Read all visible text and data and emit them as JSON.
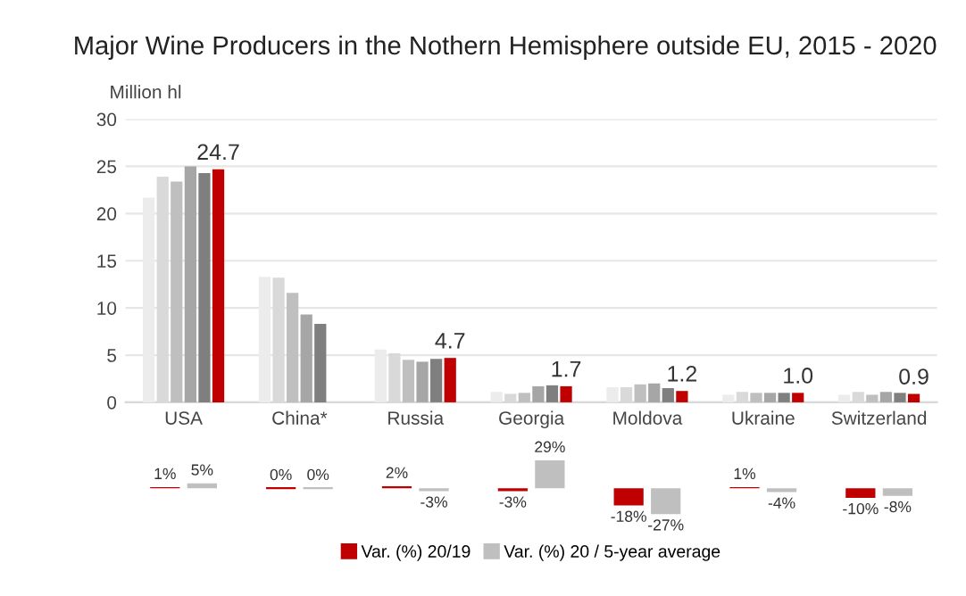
{
  "chart_data": [
    {
      "type": "bar",
      "title": "Major Wine Producers in the Nothern Hemisphere outside EU, 2015 - 2020",
      "ylabel": "Million hl",
      "categories": [
        "USA",
        "China*",
        "Russia",
        "Georgia",
        "Moldova",
        "Ukraine",
        "Switzerland"
      ],
      "series": [
        {
          "color": "#ececec",
          "values": [
            21.7,
            13.3,
            5.6,
            1.1,
            1.6,
            0.8,
            0.8
          ]
        },
        {
          "color": "#d9d9d9",
          "values": [
            23.9,
            13.2,
            5.2,
            0.9,
            1.6,
            1.1,
            1.1
          ]
        },
        {
          "color": "#bfbfbf",
          "values": [
            23.4,
            11.6,
            4.5,
            1.0,
            1.9,
            1.0,
            0.8
          ]
        },
        {
          "color": "#a6a6a6",
          "values": [
            25.0,
            9.3,
            4.3,
            1.7,
            2.0,
            1.0,
            1.1
          ]
        },
        {
          "color": "#7f7f7f",
          "values": [
            24.3,
            8.3,
            4.6,
            1.8,
            1.5,
            1.0,
            1.0
          ]
        },
        {
          "color": "#c00000",
          "values": [
            24.7,
            null,
            4.7,
            1.7,
            1.2,
            1.0,
            0.9
          ],
          "value_labels": [
            "24.7",
            null,
            "4.7",
            "1.7",
            "1.2",
            "1.0",
            "0.9"
          ]
        }
      ],
      "ylim": [
        0,
        30
      ],
      "yticks": [
        0,
        5,
        10,
        15,
        20,
        25,
        30
      ],
      "grid": "y"
    },
    {
      "type": "bar",
      "categories": [
        null,
        null,
        null,
        null,
        null,
        null,
        null
      ],
      "tick_labels": false,
      "legend": "bottom",
      "series": [
        {
          "name": "Var. (%) 20/19",
          "color": "#c00000",
          "values": [
            1,
            0,
            2,
            -3,
            -18,
            1,
            -10
          ],
          "value_labels": [
            "1%",
            "0%",
            "2%",
            "-3%",
            "-18%",
            "1%",
            "-10%"
          ]
        },
        {
          "name": "Var. (%) 20 / 5-year average",
          "color": "#bfbfbf",
          "values": [
            5,
            0,
            -3,
            29,
            -27,
            -4,
            -8
          ],
          "value_labels": [
            "5%",
            "0%",
            "-3%",
            "29%",
            "-27%",
            "-4%",
            "-8%"
          ]
        }
      ]
    }
  ]
}
